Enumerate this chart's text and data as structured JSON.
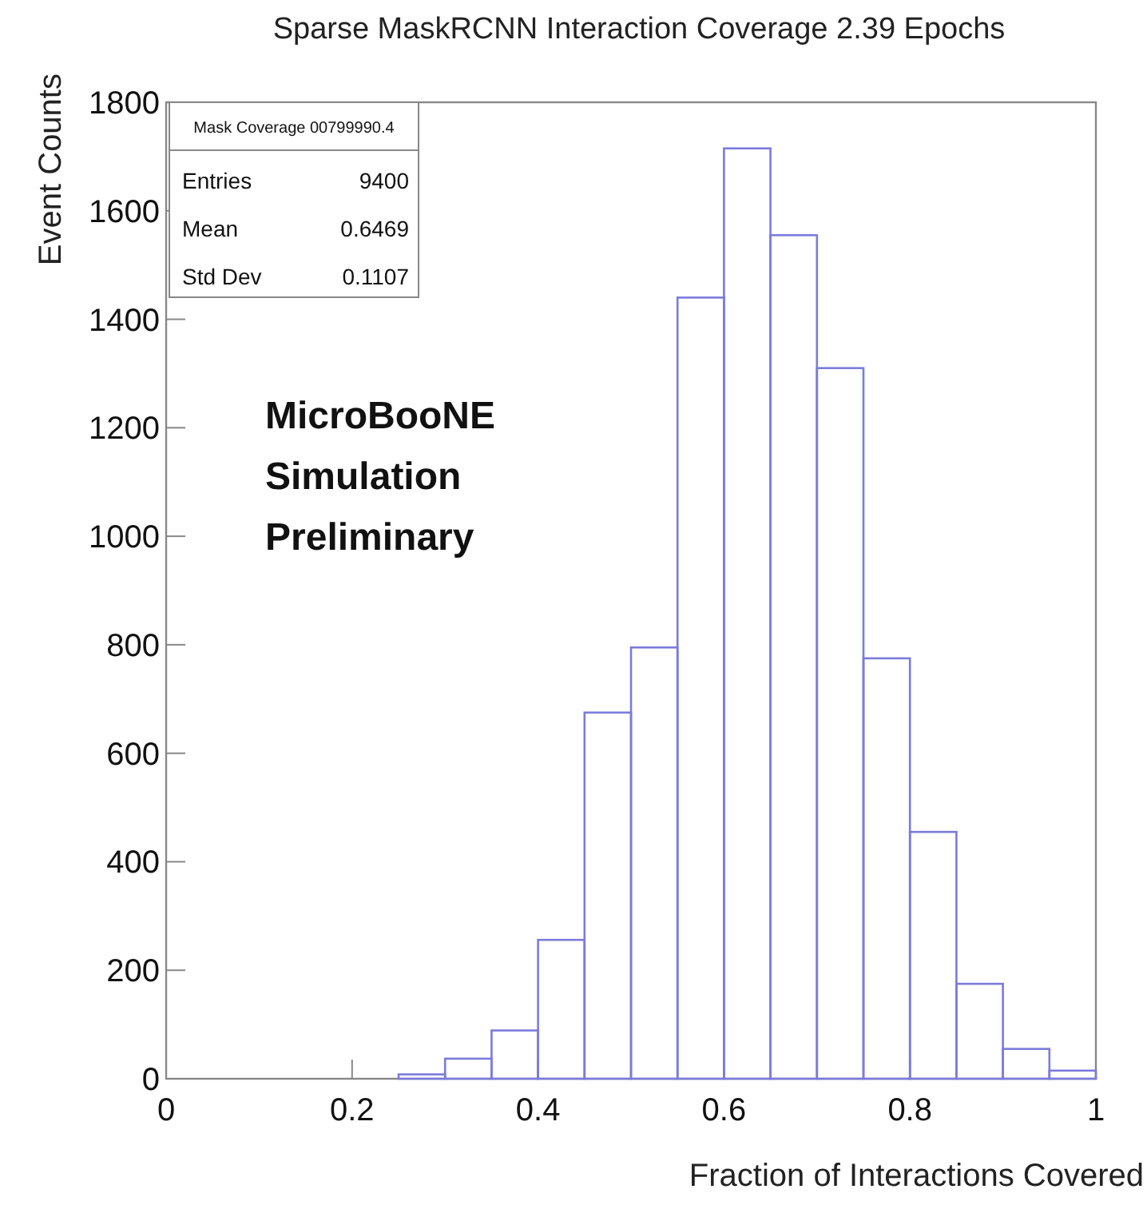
{
  "chart_data": {
    "type": "histogram",
    "title": "Sparse MaskRCNN Interaction Coverage 2.39 Epochs",
    "xlabel": "Fraction of Interactions Covered",
    "ylabel": "Event Counts",
    "bins": [
      0.25,
      0.3,
      0.35,
      0.4,
      0.45,
      0.5,
      0.55,
      0.6,
      0.65,
      0.7,
      0.75,
      0.8,
      0.85,
      0.9,
      0.95,
      1
    ],
    "values": [
      8,
      37,
      89,
      256,
      675,
      795,
      1440,
      1715,
      1555,
      1310,
      775,
      455,
      175,
      55,
      15
    ],
    "color": "#7b7bdc",
    "xlim": [
      0,
      1
    ],
    "xticks": [
      0,
      0.2,
      0.4,
      0.6,
      0.8,
      1
    ],
    "ylim": [
      0,
      1800
    ],
    "yticks": [
      0,
      200,
      400,
      600,
      800,
      1000,
      1200,
      1400,
      1600,
      1800
    ],
    "annotations": [
      "Mask Coverage 00799990.4",
      "Entries",
      "9400",
      "Mean",
      "0.6469",
      "Std Dev",
      "0.1107",
      "MicroBooNE",
      "Simulation",
      "Preliminary"
    ]
  }
}
